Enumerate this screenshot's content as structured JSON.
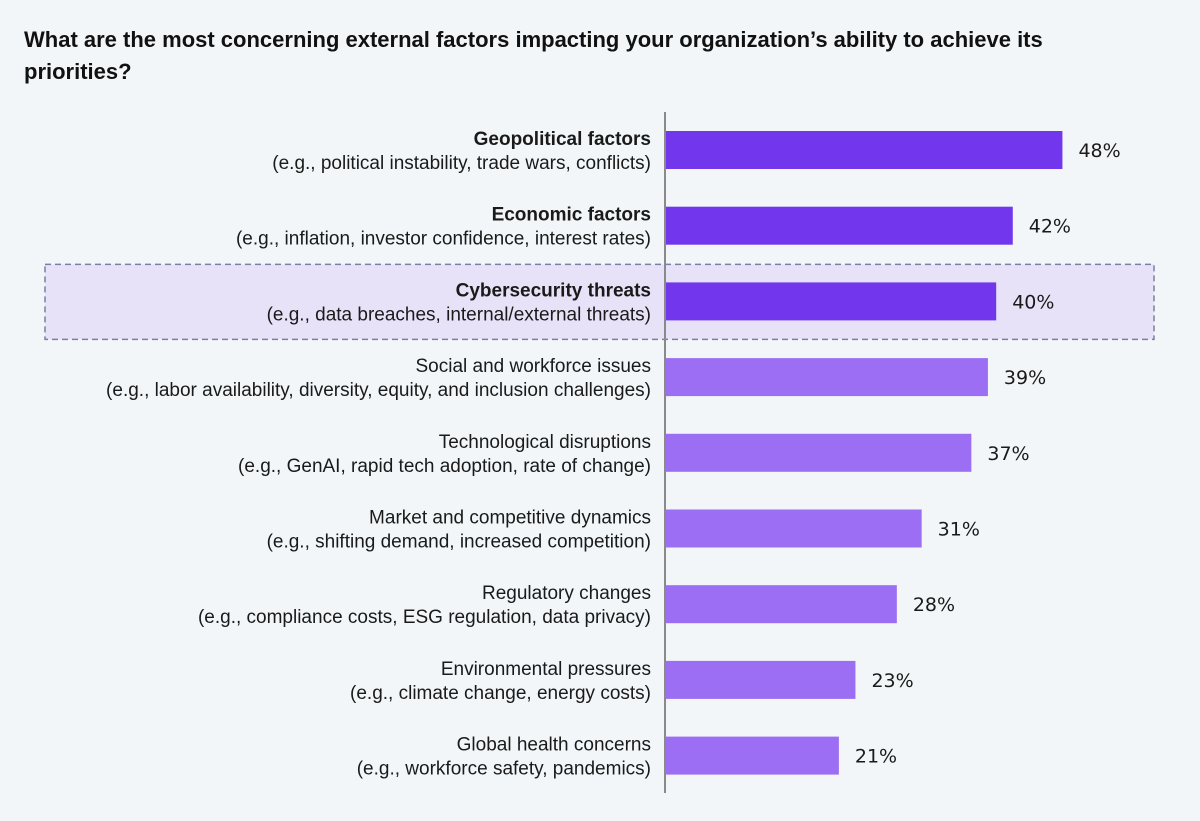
{
  "title": "What are the most concerning external factors impacting your organization’s ability to achieve its priorities?",
  "colors": {
    "background": "#f2f6f9",
    "bar_dark": "#7237ed",
    "bar_light": "#9c6ef4",
    "highlight_fill": "#e8e2f8",
    "highlight_border": "#7a7fa3",
    "axis": "#8a8a8a"
  },
  "chart_data": {
    "type": "bar",
    "orientation": "horizontal",
    "categories": [
      "Geopolitical factors",
      "Economic factors",
      "Cybersecurity threats",
      "Social and workforce issues",
      "Technological disruptions",
      "Market and competitive dynamics",
      "Regulatory changes",
      "Environmental pressures",
      "Global health concerns"
    ],
    "subtitles": [
      "(e.g., political instability, trade wars, conflicts)",
      "(e.g., inflation, investor confidence, interest rates)",
      "(e.g., data breaches, internal/external threats)",
      "(e.g., labor availability, diversity, equity, and inclusion challenges)",
      "(e.g., GenAI, rapid tech adoption, rate of change)",
      "(e.g., shifting demand, increased competition)",
      "(e.g., compliance costs, ESG regulation, data privacy)",
      "(e.g., climate change, energy costs)",
      "(e.g., workforce safety, pandemics)"
    ],
    "values": [
      48,
      42,
      40,
      39,
      37,
      31,
      28,
      23,
      21
    ],
    "value_labels": [
      "48%",
      "42%",
      "40%",
      "39%",
      "37%",
      "31%",
      "28%",
      "23%",
      "21%"
    ],
    "bold_categories": [
      true,
      true,
      true,
      false,
      false,
      false,
      false,
      false,
      false
    ],
    "emphasized": [
      true,
      true,
      true,
      false,
      false,
      false,
      false,
      false,
      false
    ],
    "highlighted_category": "Cybersecurity threats",
    "unit": "%",
    "xlim": [
      0,
      100
    ],
    "grid": false,
    "legend": "none"
  }
}
